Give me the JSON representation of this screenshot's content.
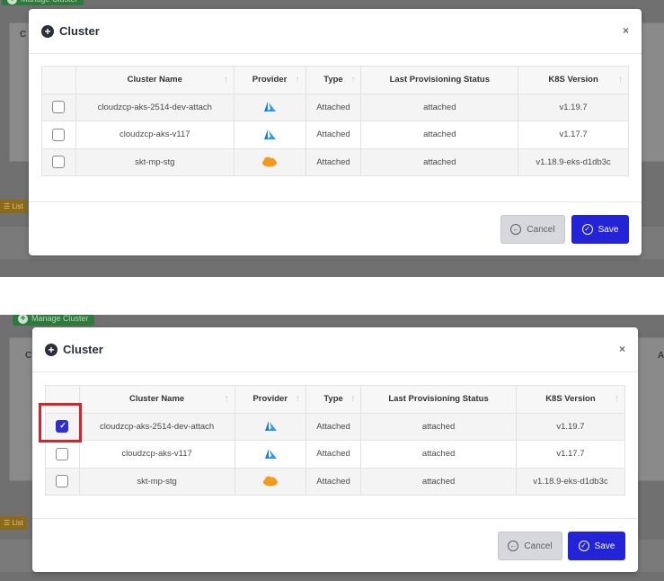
{
  "background": {
    "manage_cluster_label": "Manage Cluster",
    "list_tab_label": "List",
    "column_letter": "C",
    "column_letter_right": "A"
  },
  "screens": [
    {
      "modal": {
        "title": "Cluster",
        "close_glyph": "×",
        "columns": [
          "Cluster Name",
          "Provider",
          "Type",
          "Last Provisioning Status",
          "K8S Version"
        ],
        "sort_glyph": "↑",
        "rows": [
          {
            "checked": false,
            "name": "cloudzcp-aks-2514-dev-attach",
            "provider_icon": "azure-icon",
            "type": "Attached",
            "status": "attached",
            "k8s": "v1.19.7"
          },
          {
            "checked": false,
            "name": "cloudzcp-aks-v117",
            "provider_icon": "azure-icon",
            "type": "Attached",
            "status": "attached",
            "k8s": "v1.17.7"
          },
          {
            "checked": false,
            "name": "skt-mp-stg",
            "provider_icon": "aws-icon",
            "type": "Attached",
            "status": "attached",
            "k8s": "v1.18.9-eks-d1db3c"
          }
        ],
        "cancel_label": "Cancel",
        "save_label": "Save"
      }
    },
    {
      "modal": {
        "title": "Cluster",
        "close_glyph": "×",
        "columns": [
          "Cluster Name",
          "Provider",
          "Type",
          "Last Provisioning Status",
          "K8S Version"
        ],
        "sort_glyph": "↑",
        "rows": [
          {
            "checked": true,
            "name": "cloudzcp-aks-2514-dev-attach",
            "provider_icon": "azure-icon",
            "type": "Attached",
            "status": "attached",
            "k8s": "v1.19.7"
          },
          {
            "checked": false,
            "name": "cloudzcp-aks-v117",
            "provider_icon": "azure-icon",
            "type": "Attached",
            "status": "attached",
            "k8s": "v1.17.7"
          },
          {
            "checked": false,
            "name": "skt-mp-stg",
            "provider_icon": "aws-icon",
            "type": "Attached",
            "status": "attached",
            "k8s": "v1.18.9-eks-d1db3c"
          }
        ],
        "cancel_label": "Cancel",
        "save_label": "Save"
      }
    }
  ],
  "colors": {
    "save_button": "#2323d8",
    "checkbox_checked": "#2d2fcf",
    "highlight_box": "#d6252a",
    "azure_blue": "#1a7fd4",
    "aws_orange": "#f29a1f"
  }
}
